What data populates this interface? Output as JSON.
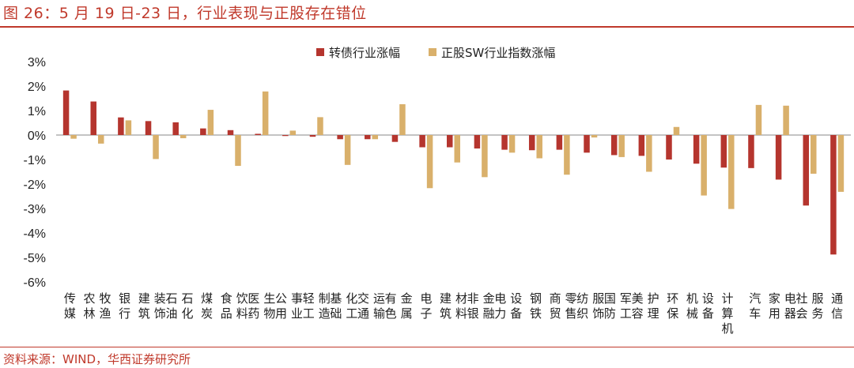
{
  "title": "图 26：5 月 19 日-23 日，行业表现与正股存在错位",
  "source": "资料来源：WIND，华西证券研究所",
  "colors": {
    "series1": "#b5352e",
    "series2": "#d9b06b",
    "accent": "#c0392b"
  },
  "chart_data": {
    "type": "bar",
    "ylim": [
      -6,
      3
    ],
    "yticks": [
      "3%",
      "2%",
      "1%",
      "0%",
      "-1%",
      "-2%",
      "-3%",
      "-4%",
      "-5%",
      "-6%"
    ],
    "legend_position": "top",
    "categories": [
      "传媒",
      "农林牧渔",
      "银行",
      "建筑装饰",
      "石油石化",
      "煤炭",
      "食品饮料",
      "医药生物",
      "公用事业",
      "轻工制造",
      "基础化工",
      "交通运输",
      "有色金属",
      "电子",
      "建筑材料",
      "非银金融",
      "电力设备",
      "钢铁",
      "商贸零售",
      "纺织服饰",
      "国防军工",
      "美容护理",
      "环保",
      "机械设备",
      "计算机",
      "汽车",
      "家用电器",
      "社会服务",
      "通信"
    ],
    "series": [
      {
        "name": "转债行业涨幅",
        "values": [
          1.82,
          1.37,
          0.72,
          0.57,
          0.52,
          0.27,
          0.2,
          0.05,
          -0.04,
          -0.07,
          -0.17,
          -0.17,
          -0.28,
          -0.5,
          -0.5,
          -0.55,
          -0.6,
          -0.62,
          -0.6,
          -0.72,
          -0.82,
          -0.85,
          -1.0,
          -1.17,
          -1.33,
          -1.35,
          -1.82,
          -2.88,
          -4.88
        ]
      },
      {
        "name": "正股SW行业指数涨幅",
        "values": [
          -0.15,
          -0.35,
          0.6,
          -0.98,
          -0.13,
          1.03,
          -1.26,
          1.78,
          0.18,
          0.73,
          -1.22,
          -0.17,
          1.26,
          -2.17,
          -1.12,
          -1.72,
          -0.72,
          -0.95,
          -1.62,
          -0.1,
          -0.9,
          -1.5,
          0.33,
          -2.47,
          -3.02,
          1.23,
          1.2,
          -1.58,
          -2.32
        ]
      }
    ]
  }
}
